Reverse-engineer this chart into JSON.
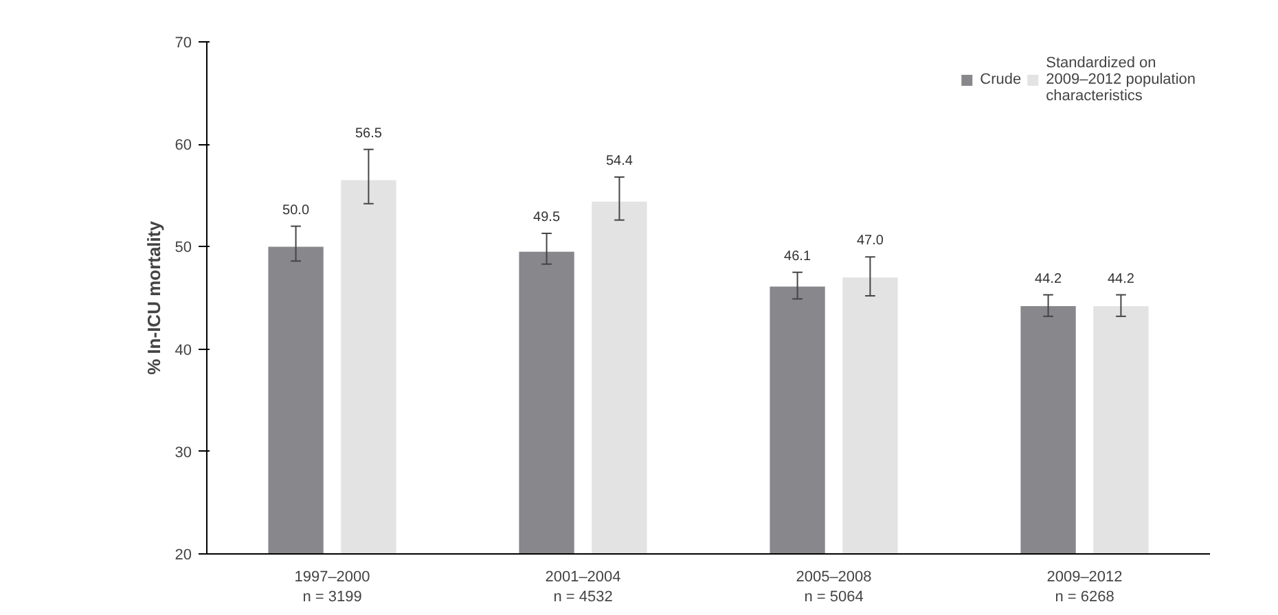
{
  "chart_data": {
    "type": "bar",
    "ylabel": "% In-ICU mortality",
    "categories": [
      "1997–2000\nn = 3199",
      "2001–2004\nn = 4532",
      "2005–2008\nn = 5064",
      "2009–2012\nn = 6268"
    ],
    "series": [
      {
        "name": "Crude",
        "color": "#87878c",
        "values": [
          50.0,
          49.5,
          46.1,
          44.2
        ],
        "value_labels": [
          "50.0",
          "49.5",
          "46.1",
          "44.2"
        ],
        "errors": [
          [
            48.6,
            52.0
          ],
          [
            48.3,
            51.3
          ],
          [
            44.9,
            47.5
          ],
          [
            43.2,
            45.3
          ]
        ]
      },
      {
        "name": "Standardized on\n2009–2012 population\ncharacteristics",
        "color": "#e3e3e3",
        "values": [
          56.5,
          54.4,
          47.0,
          44.2
        ],
        "value_labels": [
          "56.5",
          "54.4",
          "47.0",
          "44.2"
        ],
        "errors": [
          [
            54.2,
            59.5
          ],
          [
            52.6,
            56.8
          ],
          [
            45.2,
            49.0
          ],
          [
            43.2,
            45.3
          ]
        ]
      }
    ],
    "ylim": [
      20,
      70
    ],
    "yticks": [
      20,
      30,
      40,
      50,
      60,
      70
    ],
    "grid": false,
    "legend": "top right"
  }
}
